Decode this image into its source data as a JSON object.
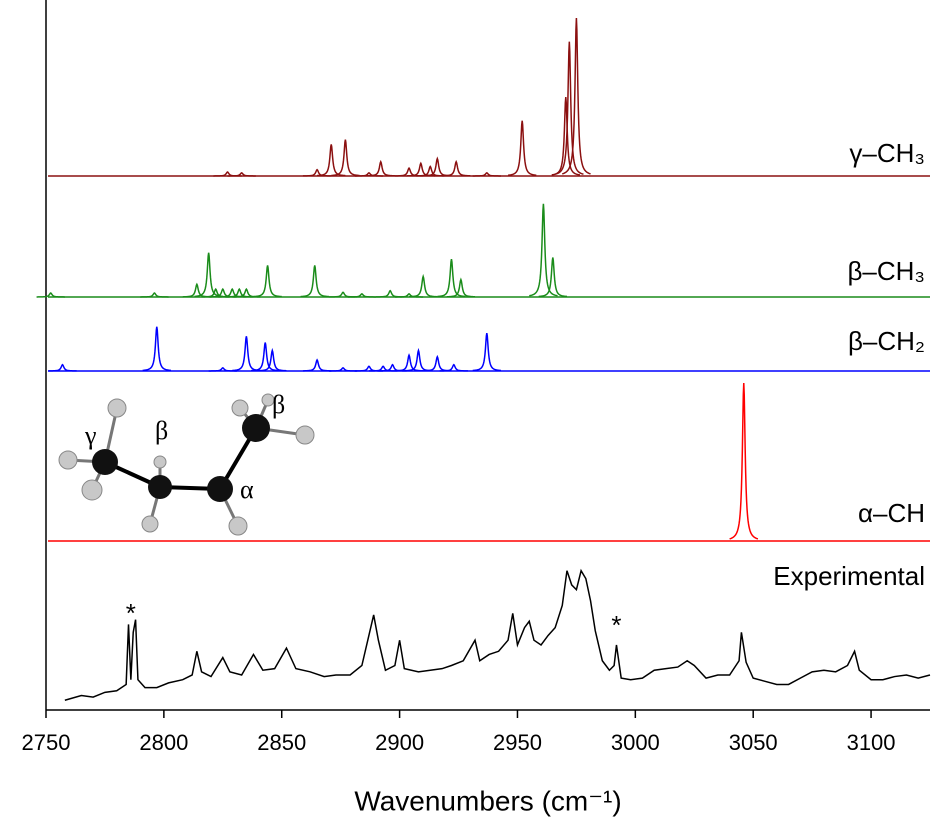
{
  "chart_data": {
    "type": "spectra",
    "xlabel": "Wavenumbers (cm⁻¹)",
    "xlim": [
      2750,
      3125
    ],
    "xticks": [
      2750,
      2800,
      2850,
      2900,
      2950,
      3000,
      3050,
      3100
    ],
    "series": [
      {
        "name": "γ–CH₃",
        "color": "#8b1010",
        "peaks": [
          2975,
          2972,
          2970.5,
          2952,
          2877,
          2871,
          2892,
          2916,
          2909,
          2913,
          2904,
          2924,
          2865,
          2827,
          2833,
          2887,
          2937
        ],
        "values": [
          1.0,
          0.85,
          0.5,
          0.35,
          0.23,
          0.2,
          0.09,
          0.11,
          0.08,
          0.06,
          0.05,
          0.09,
          0.04,
          0.025,
          0.02,
          0.02,
          0.02
        ]
      },
      {
        "name": "β–CH₃",
        "color": "#1a8c1a",
        "peaks": [
          2961,
          2965,
          2819,
          2844,
          2864,
          2922,
          2926,
          2910,
          2814,
          2822,
          2825,
          2829,
          2832,
          2835,
          2896,
          2876,
          2752,
          2796,
          2884,
          2904
        ],
        "values": [
          0.59,
          0.25,
          0.28,
          0.2,
          0.2,
          0.24,
          0.11,
          0.13,
          0.08,
          0.05,
          0.05,
          0.05,
          0.05,
          0.05,
          0.04,
          0.03,
          0.025,
          0.025,
          0.02,
          0.02
        ]
      },
      {
        "name": "β–CH₂",
        "color": "#0000ff",
        "peaks": [
          2797,
          2835,
          2843,
          2846,
          2937,
          2908,
          2904,
          2916,
          2865,
          2757,
          2897,
          2893,
          2887,
          2923,
          2876,
          2825
        ],
        "values": [
          0.28,
          0.22,
          0.18,
          0.13,
          0.24,
          0.13,
          0.1,
          0.09,
          0.07,
          0.04,
          0.04,
          0.03,
          0.03,
          0.04,
          0.02,
          0.02
        ]
      },
      {
        "name": "α–CH",
        "color": "#ff0000",
        "peaks": [
          3046
        ],
        "values": [
          1.0
        ]
      },
      {
        "name": "Experimental",
        "color": "#000000",
        "x": [
          2758,
          2765,
          2770,
          2775,
          2780,
          2784,
          2785,
          2786,
          2787,
          2788,
          2789,
          2792,
          2797,
          2802,
          2808,
          2812,
          2814,
          2816,
          2820,
          2825,
          2828,
          2833,
          2838,
          2842,
          2847,
          2852,
          2856,
          2862,
          2868,
          2873,
          2879,
          2884,
          2889,
          2891,
          2894,
          2898,
          2900,
          2902,
          2908,
          2913,
          2918,
          2922,
          2927,
          2932,
          2934,
          2938,
          2942,
          2946,
          2948,
          2950,
          2953,
          2955,
          2957,
          2960,
          2963,
          2966,
          2969,
          2971,
          2973,
          2975,
          2977,
          2979,
          2981,
          2983,
          2986,
          2989,
          2991,
          2992,
          2994,
          2998,
          3003,
          3008,
          3013,
          3018,
          3022,
          3025,
          3030,
          3035,
          3040,
          3044,
          3045,
          3047,
          3050,
          3055,
          3060,
          3065,
          3070,
          3075,
          3080,
          3085,
          3090,
          3093,
          3095,
          3100,
          3105,
          3110,
          3115,
          3120,
          3125
        ],
        "values": [
          0.03,
          0.06,
          0.05,
          0.08,
          0.09,
          0.13,
          0.51,
          0.16,
          0.46,
          0.54,
          0.16,
          0.11,
          0.11,
          0.14,
          0.16,
          0.19,
          0.34,
          0.21,
          0.18,
          0.3,
          0.21,
          0.19,
          0.32,
          0.22,
          0.23,
          0.36,
          0.23,
          0.21,
          0.18,
          0.19,
          0.19,
          0.25,
          0.57,
          0.41,
          0.22,
          0.25,
          0.41,
          0.23,
          0.21,
          0.22,
          0.23,
          0.25,
          0.28,
          0.41,
          0.28,
          0.32,
          0.34,
          0.41,
          0.58,
          0.38,
          0.49,
          0.53,
          0.41,
          0.38,
          0.44,
          0.49,
          0.63,
          0.85,
          0.76,
          0.73,
          0.85,
          0.8,
          0.66,
          0.47,
          0.28,
          0.22,
          0.25,
          0.38,
          0.17,
          0.16,
          0.17,
          0.22,
          0.23,
          0.24,
          0.28,
          0.25,
          0.17,
          0.19,
          0.19,
          0.28,
          0.46,
          0.27,
          0.17,
          0.15,
          0.13,
          0.13,
          0.17,
          0.21,
          0.22,
          0.21,
          0.25,
          0.34,
          0.22,
          0.16,
          0.16,
          0.18,
          0.19,
          0.17,
          0.19
        ]
      }
    ],
    "annotations": [
      {
        "text": "*",
        "x": 2786
      },
      {
        "text": "*",
        "x": 2992
      }
    ],
    "molecule_labels": [
      "γ",
      "β",
      "α",
      "β"
    ]
  }
}
